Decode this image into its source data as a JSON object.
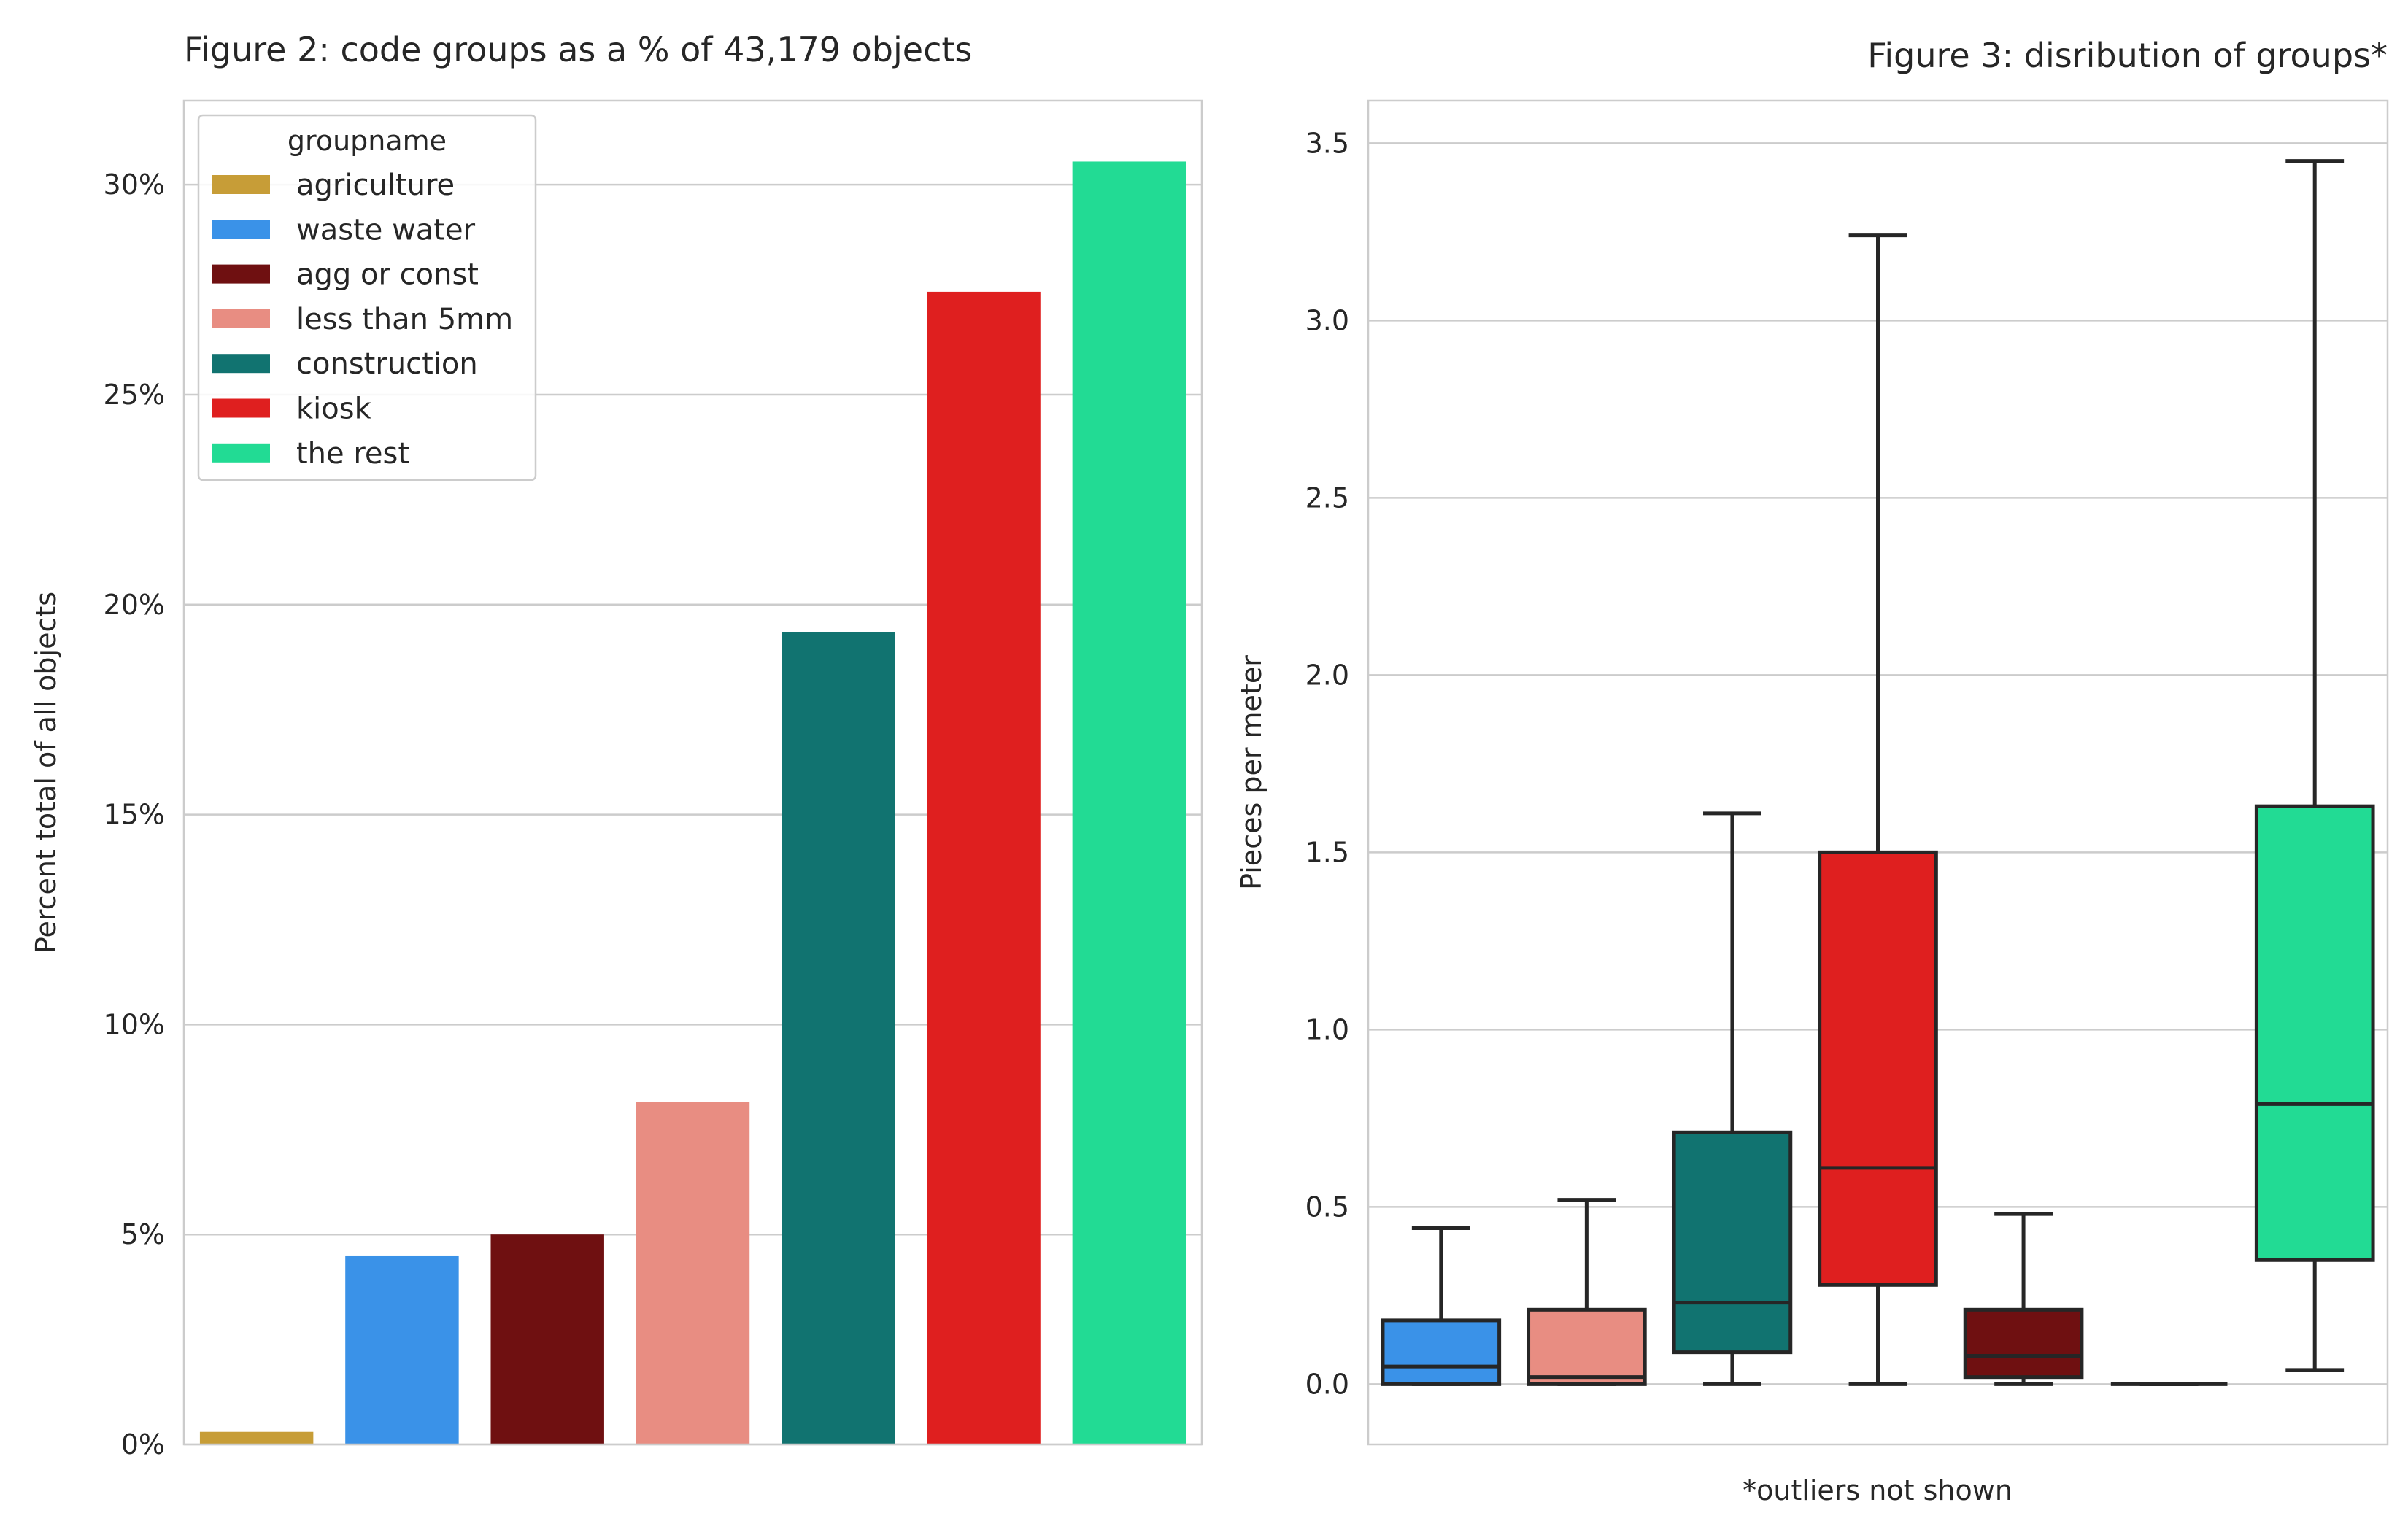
{
  "chart_data": [
    {
      "type": "bar",
      "title": "Figure 2: code groups as a % of 43,179 objects",
      "xlabel": "",
      "ylabel": "Percent total of all objects",
      "ylim": [
        0,
        32
      ],
      "yticks": [
        0,
        5,
        10,
        15,
        20,
        25,
        30
      ],
      "ytick_labels": [
        "0%",
        "5%",
        "10%",
        "15%",
        "20%",
        "25%",
        "30%"
      ],
      "grid": true,
      "legend": {
        "title": "groupname",
        "placement": "top-left",
        "entries": [
          {
            "label": "agriculture",
            "color": "#C79D37"
          },
          {
            "label": "waste water",
            "color": "#3A92E8"
          },
          {
            "label": "agg or const",
            "color": "#6F1011"
          },
          {
            "label": "less than 5mm",
            "color": "#E88D82"
          },
          {
            "label": "construction",
            "color": "#117370"
          },
          {
            "label": "kiosk",
            "color": "#DF1F1F"
          },
          {
            "label": "the rest",
            "color": "#22DB94"
          }
        ]
      },
      "categories": [
        "agriculture",
        "waste water",
        "agg or const",
        "less than 5mm",
        "construction",
        "kiosk",
        "the rest"
      ],
      "values": [
        0.3,
        4.5,
        5.0,
        8.15,
        19.35,
        27.45,
        30.55
      ],
      "colors": [
        "#C79D37",
        "#3A92E8",
        "#6F1011",
        "#E88D82",
        "#117370",
        "#DF1F1F",
        "#22DB94"
      ]
    },
    {
      "type": "box",
      "title": "Figure 3: disribution of groups*",
      "xlabel": "*outliers not shown",
      "ylabel": "Pieces per meter",
      "ylim": [
        -0.17,
        3.62
      ],
      "yticks": [
        0.0,
        0.5,
        1.0,
        1.5,
        2.0,
        2.5,
        3.0,
        3.5
      ],
      "ytick_labels": [
        "0.0",
        "0.5",
        "1.0",
        "1.5",
        "2.0",
        "2.5",
        "3.0",
        "3.5"
      ],
      "grid": true,
      "boxes": [
        {
          "color": "#3A92E8",
          "min": 0.0,
          "q1": 0.0,
          "median": 0.05,
          "q3": 0.18,
          "max": 0.44
        },
        {
          "color": "#E88D82",
          "min": 0.0,
          "q1": 0.0,
          "median": 0.02,
          "q3": 0.21,
          "max": 0.52
        },
        {
          "color": "#117370",
          "min": 0.0,
          "q1": 0.09,
          "median": 0.23,
          "q3": 0.71,
          "max": 1.61
        },
        {
          "color": "#DF1F1F",
          "min": 0.0,
          "q1": 0.28,
          "median": 0.61,
          "q3": 1.5,
          "max": 3.24
        },
        {
          "color": "#6F1011",
          "min": 0.0,
          "q1": 0.02,
          "median": 0.08,
          "q3": 0.21,
          "max": 0.48
        },
        {
          "color": "#C79D37",
          "min": 0.0,
          "q1": 0.0,
          "median": 0.0,
          "q3": 0.0,
          "max": 0.0
        },
        {
          "color": "#22DB94",
          "min": 0.04,
          "q1": 0.35,
          "median": 0.79,
          "q3": 1.63,
          "max": 3.45
        }
      ]
    }
  ]
}
